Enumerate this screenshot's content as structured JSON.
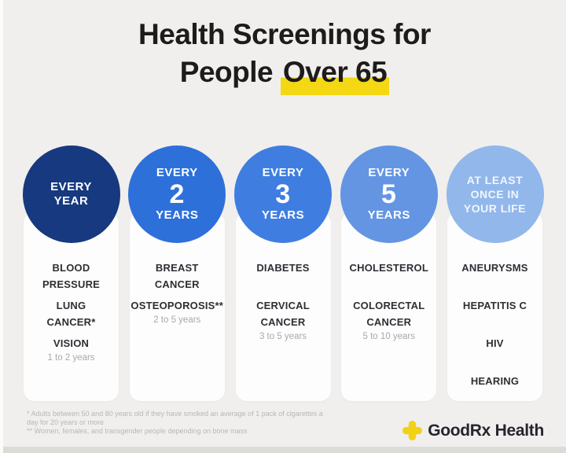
{
  "title": {
    "line1": "Health Screenings for",
    "line2_prefix": "People",
    "line2_highlight": "Over 65",
    "highlight_color": "#f4d813"
  },
  "chart_data": {
    "type": "table",
    "title": "Health Screenings for People Over 65",
    "categories": [
      "EVERY YEAR",
      "EVERY 2 YEARS",
      "EVERY 3 YEARS",
      "EVERY 5 YEARS",
      "AT LEAST ONCE IN YOUR LIFE"
    ],
    "series": [
      {
        "name": "EVERY YEAR",
        "values": [
          "BLOOD PRESSURE",
          "LUNG CANCER*",
          "VISION (1 to 2 years)"
        ]
      },
      {
        "name": "EVERY 2 YEARS",
        "values": [
          "BREAST CANCER",
          "OSTEOPOROSIS** (2 to 5 years)"
        ]
      },
      {
        "name": "EVERY 3 YEARS",
        "values": [
          "DIABETES",
          "CERVICAL CANCER (3 to 5 years)"
        ]
      },
      {
        "name": "EVERY 5 YEARS",
        "values": [
          "CHOLESTEROL",
          "COLORECTAL CANCER (5 to 10 years)"
        ]
      },
      {
        "name": "AT LEAST ONCE IN YOUR LIFE",
        "values": [
          "ANEURYSMS",
          "HEPATITIS C",
          "HIV",
          "HEARING"
        ]
      }
    ]
  },
  "columns": [
    {
      "name": "every-year",
      "circle_color": "#16397f",
      "small_text": false,
      "circle_lines": [
        {
          "text": "EVERY",
          "big": false
        },
        {
          "text": "YEAR",
          "big": false
        }
      ],
      "items": [
        {
          "lines": [
            "BLOOD",
            "PRESSURE"
          ],
          "interval": ""
        },
        {
          "lines": [
            "LUNG",
            "CANCER*"
          ],
          "interval": ""
        },
        {
          "lines": [
            "VISION"
          ],
          "interval": "1 to 2 years"
        }
      ]
    },
    {
      "name": "every-2-years",
      "circle_color": "#2e70da",
      "small_text": false,
      "circle_lines": [
        {
          "text": "EVERY",
          "big": false
        },
        {
          "text": "2",
          "big": true
        },
        {
          "text": "YEARS",
          "big": false
        }
      ],
      "items": [
        {
          "lines": [
            "BREAST",
            "CANCER"
          ],
          "interval": ""
        },
        {
          "lines": [
            "OSTEOPOROSIS**"
          ],
          "interval": "2 to 5 years"
        }
      ]
    },
    {
      "name": "every-3-years",
      "circle_color": "#3f7ee0",
      "small_text": false,
      "circle_lines": [
        {
          "text": "EVERY",
          "big": false
        },
        {
          "text": "3",
          "big": true
        },
        {
          "text": "YEARS",
          "big": false
        }
      ],
      "items": [
        {
          "lines": [
            "DIABETES"
          ],
          "interval": ""
        },
        {
          "lines": [
            "CERVICAL",
            "CANCER"
          ],
          "interval": "3 to 5 years"
        }
      ]
    },
    {
      "name": "every-5-years",
      "circle_color": "#6495e3",
      "small_text": false,
      "circle_lines": [
        {
          "text": "EVERY",
          "big": false
        },
        {
          "text": "5",
          "big": true
        },
        {
          "text": "YEARS",
          "big": false
        }
      ],
      "items": [
        {
          "lines": [
            "CHOLESTEROL"
          ],
          "interval": ""
        },
        {
          "lines": [
            "COLORECTAL",
            "CANCER"
          ],
          "interval": "5 to 10 years"
        }
      ]
    },
    {
      "name": "at-least-once-in-your-life",
      "circle_color": "#92b7eb",
      "small_text": true,
      "circle_lines": [
        {
          "text": "AT LEAST",
          "big": false
        },
        {
          "text": "ONCE IN",
          "big": false
        },
        {
          "text": "YOUR LIFE",
          "big": false
        }
      ],
      "items": [
        {
          "lines": [
            "ANEURYSMS"
          ],
          "interval": ""
        },
        {
          "lines": [
            "HEPATITIS C"
          ],
          "interval": ""
        },
        {
          "lines": [
            "HIV"
          ],
          "interval": ""
        },
        {
          "lines": [
            "HEARING"
          ],
          "interval": ""
        }
      ]
    }
  ],
  "footnotes": [
    "* Adults between 50 and 80 years old if they have smoked an average of 1 pack of cigarettes a day for 20 years or more",
    "** Women, females, and transgender people depending on bone mass"
  ],
  "logo": {
    "brand": "GoodRx",
    "suffix": "Health",
    "icon_color": "#f2d117"
  }
}
